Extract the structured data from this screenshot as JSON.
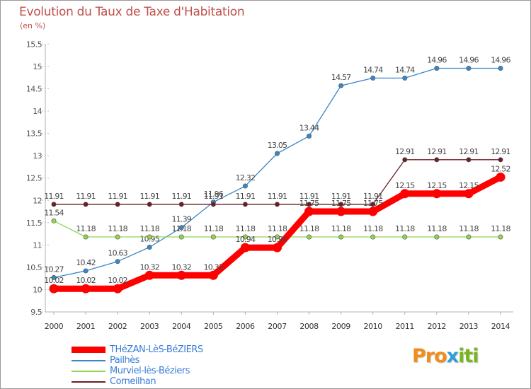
{
  "title": "Evolution du Taux de Taxe d'Habitation",
  "unit_label": "(en %)",
  "logo": {
    "parts": [
      {
        "text": "Pro",
        "color": "#f28c1b"
      },
      {
        "text": "x",
        "color": "#2e9fd8"
      },
      {
        "text": "iti",
        "color": "#7ab51d"
      }
    ]
  },
  "chart_data": {
    "type": "line",
    "title": "Evolution du Taux de Taxe d'Habitation",
    "ylabel": "(en %)",
    "xlabel": "",
    "ylim": [
      9.5,
      15.5
    ],
    "yticks": [
      "9.5",
      "10",
      "10.5",
      "11",
      "11.5",
      "12",
      "12.5",
      "13",
      "13.5",
      "14",
      "14.5",
      "15",
      "15.5"
    ],
    "x": [
      "2000",
      "2001",
      "2002",
      "2003",
      "2004",
      "2005",
      "2006",
      "2007",
      "2008",
      "2009",
      "2010",
      "2011",
      "2012",
      "2013",
      "2014"
    ],
    "grid": false,
    "legend_position": "bottom-left",
    "series": [
      {
        "name": "Pailhès",
        "color": "#3b86c6",
        "values": [
          10.27,
          10.42,
          10.63,
          10.95,
          11.39,
          11.96,
          12.32,
          13.05,
          13.44,
          14.57,
          14.74,
          14.74,
          14.96,
          14.96,
          14.96
        ],
        "labels": [
          "10.27",
          "10.42",
          "10.63",
          "10.95",
          "11.39",
          "11.96",
          "12.32",
          "13.05",
          "13.44",
          "14.57",
          "14.74",
          "14.74",
          "14.96",
          "14.96",
          "14.96"
        ]
      },
      {
        "name": "Murviel-lès-Béziers",
        "color": "#8ed652",
        "values": [
          11.54,
          11.18,
          11.18,
          11.18,
          11.18,
          11.18,
          11.18,
          11.18,
          11.18,
          11.18,
          11.18,
          11.18,
          11.18,
          11.18,
          11.18
        ],
        "labels": [
          "11.54",
          "11.18",
          "11.18",
          "11.18",
          "11.18",
          "11.18",
          "11.18",
          "11.18",
          "11.18",
          "11.18",
          "11.18",
          "11.18",
          "11.18",
          "11.18",
          "11.18"
        ]
      },
      {
        "name": "Corneilhan",
        "color": "#6b1f24",
        "values": [
          11.91,
          11.91,
          11.91,
          11.91,
          11.91,
          11.91,
          11.91,
          11.91,
          11.91,
          11.91,
          11.91,
          12.91,
          12.91,
          12.91,
          12.91
        ],
        "labels": [
          "11.91",
          "11.91",
          "11.91",
          "11.91",
          "11.91",
          "11.91",
          "11.91",
          "11.91",
          "11.91",
          "11.91",
          "11.91",
          "12.91",
          "12.91",
          "12.91",
          "12.91"
        ]
      },
      {
        "name": "THéZAN-LèS-BéZIERS",
        "color": "#ff0000",
        "values": [
          10.02,
          10.02,
          10.02,
          10.32,
          10.32,
          10.32,
          10.94,
          10.94,
          11.75,
          11.75,
          11.75,
          12.15,
          12.15,
          12.15,
          12.52
        ],
        "labels": [
          "10.02",
          "10.02",
          "10.02",
          "10.32",
          "10.32",
          "10.32",
          "10.94",
          "10.94",
          "11.75",
          "11.75",
          "11.75",
          "12.15",
          "12.15",
          "12.15",
          "12.52"
        ]
      }
    ],
    "legend_order": [
      "THéZAN-LèS-BéZIERS",
      "Pailhès",
      "Murviel-lès-Béziers",
      "Corneilhan"
    ]
  }
}
